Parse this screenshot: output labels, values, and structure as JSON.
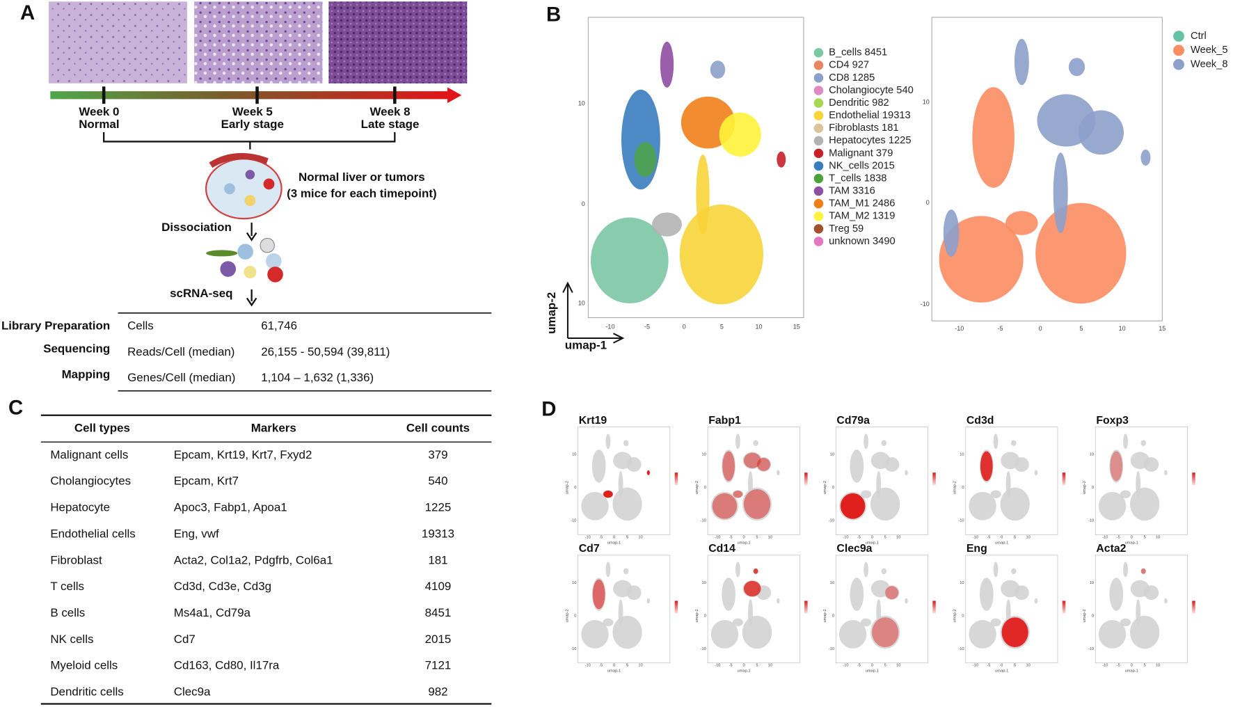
{
  "panel_a": {
    "label": "A",
    "timeline": [
      {
        "week": "Week 0",
        "stage": "Normal"
      },
      {
        "week": "Week 5",
        "stage": "Early stage"
      },
      {
        "week": "Week 8",
        "stage": "Late stage"
      }
    ],
    "sample_lines": [
      "Normal liver or tumors",
      "(3 mice for each timepoint)"
    ],
    "steps": [
      "Dissociation",
      "scRNA-seq"
    ],
    "table": [
      [
        "Library Preparation",
        "Cells",
        "61,746"
      ],
      [
        "Sequencing",
        "Reads/Cell (median)",
        "26,155 - 50,594 (39,811)"
      ],
      [
        "Mapping",
        "Genes/Cell (median)",
        "1,104 – 1,632 (1,336)"
      ]
    ]
  },
  "panel_b": {
    "label": "B",
    "x_axis": "umap-1",
    "y_axis": "umap-2",
    "left_xticks": [
      "-10",
      "-5",
      "0",
      "5",
      "10",
      "15"
    ],
    "left_yticks": [
      "10",
      "0",
      "10"
    ],
    "right_xticks": [
      "-10",
      "-5",
      "0",
      "5",
      "10",
      "15"
    ],
    "right_yticks": [
      "10",
      "0",
      "-10"
    ],
    "cell_legend": [
      {
        "name": "B_cells 8451",
        "color": "#7cc7a4"
      },
      {
        "name": "CD4 927",
        "color": "#e8875f"
      },
      {
        "name": "CD8 1285",
        "color": "#8da0cb"
      },
      {
        "name": "Cholangiocyte 540",
        "color": "#e08ac3"
      },
      {
        "name": "Dendritic 982",
        "color": "#a6d854"
      },
      {
        "name": "Endothelial 19313",
        "color": "#f7d438"
      },
      {
        "name": "Fibroblasts 181",
        "color": "#dcc49a"
      },
      {
        "name": "Hepatocytes 1225",
        "color": "#b3b3b3"
      },
      {
        "name": "Malignant 379",
        "color": "#c8202a"
      },
      {
        "name": "NK_cells 2015",
        "color": "#3a7dbf"
      },
      {
        "name": "T_cells 1838",
        "color": "#4da33a"
      },
      {
        "name": "TAM 3316",
        "color": "#8e4ea2"
      },
      {
        "name": "TAM_M1 2486",
        "color": "#f07f1a"
      },
      {
        "name": "TAM_M2 1319",
        "color": "#fff33b"
      },
      {
        "name": "Treg 59",
        "color": "#a0522d"
      },
      {
        "name": "unknown 3490",
        "color": "#e377c2"
      }
    ],
    "time_legend": [
      {
        "name": "Ctrl",
        "color": "#66c2a5"
      },
      {
        "name": "Week_5",
        "color": "#fc8d62"
      },
      {
        "name": "Week_8",
        "color": "#8da0cb"
      }
    ]
  },
  "panel_c": {
    "label": "C",
    "header": [
      "Cell types",
      "Markers",
      "Cell counts"
    ],
    "rows": [
      [
        "Malignant cells",
        "Epcam, Krt19, Krt7, Fxyd2",
        "379"
      ],
      [
        "Cholangiocytes",
        "Epcam, Krt7",
        "540"
      ],
      [
        "Hepatocyte",
        "Apoc3, Fabp1, Apoa1",
        "1225"
      ],
      [
        "Endothelial cells",
        "Eng, vwf",
        "19313"
      ],
      [
        "Fibroblast",
        "Acta2, Col1a2, Pdgfrb, Col6a1",
        "181"
      ],
      [
        "T cells",
        "Cd3d, Cd3e, Cd3g",
        "4109"
      ],
      [
        "B cells",
        "Ms4a1, Cd79a",
        "8451"
      ],
      [
        "NK cells",
        "Cd7",
        "2015"
      ],
      [
        "Myeloid cells",
        "Cd163, Cd80, Il17ra",
        "7121"
      ],
      [
        "Dendritic cells",
        "Clec9a",
        "982"
      ]
    ]
  },
  "panel_d": {
    "label": "D",
    "genes": [
      "Krt19",
      "Fabp1",
      "Cd79a",
      "Cd3d",
      "Foxp3",
      "Cd7",
      "Cd14",
      "Clec9a",
      "Eng",
      "Acta2"
    ],
    "x_axis": "umap-1",
    "y_axis": "umap-2",
    "xticks": [
      "-10",
      "-5",
      "0",
      "5",
      "10"
    ],
    "yticks": [
      "10",
      "0",
      "-10"
    ]
  }
}
